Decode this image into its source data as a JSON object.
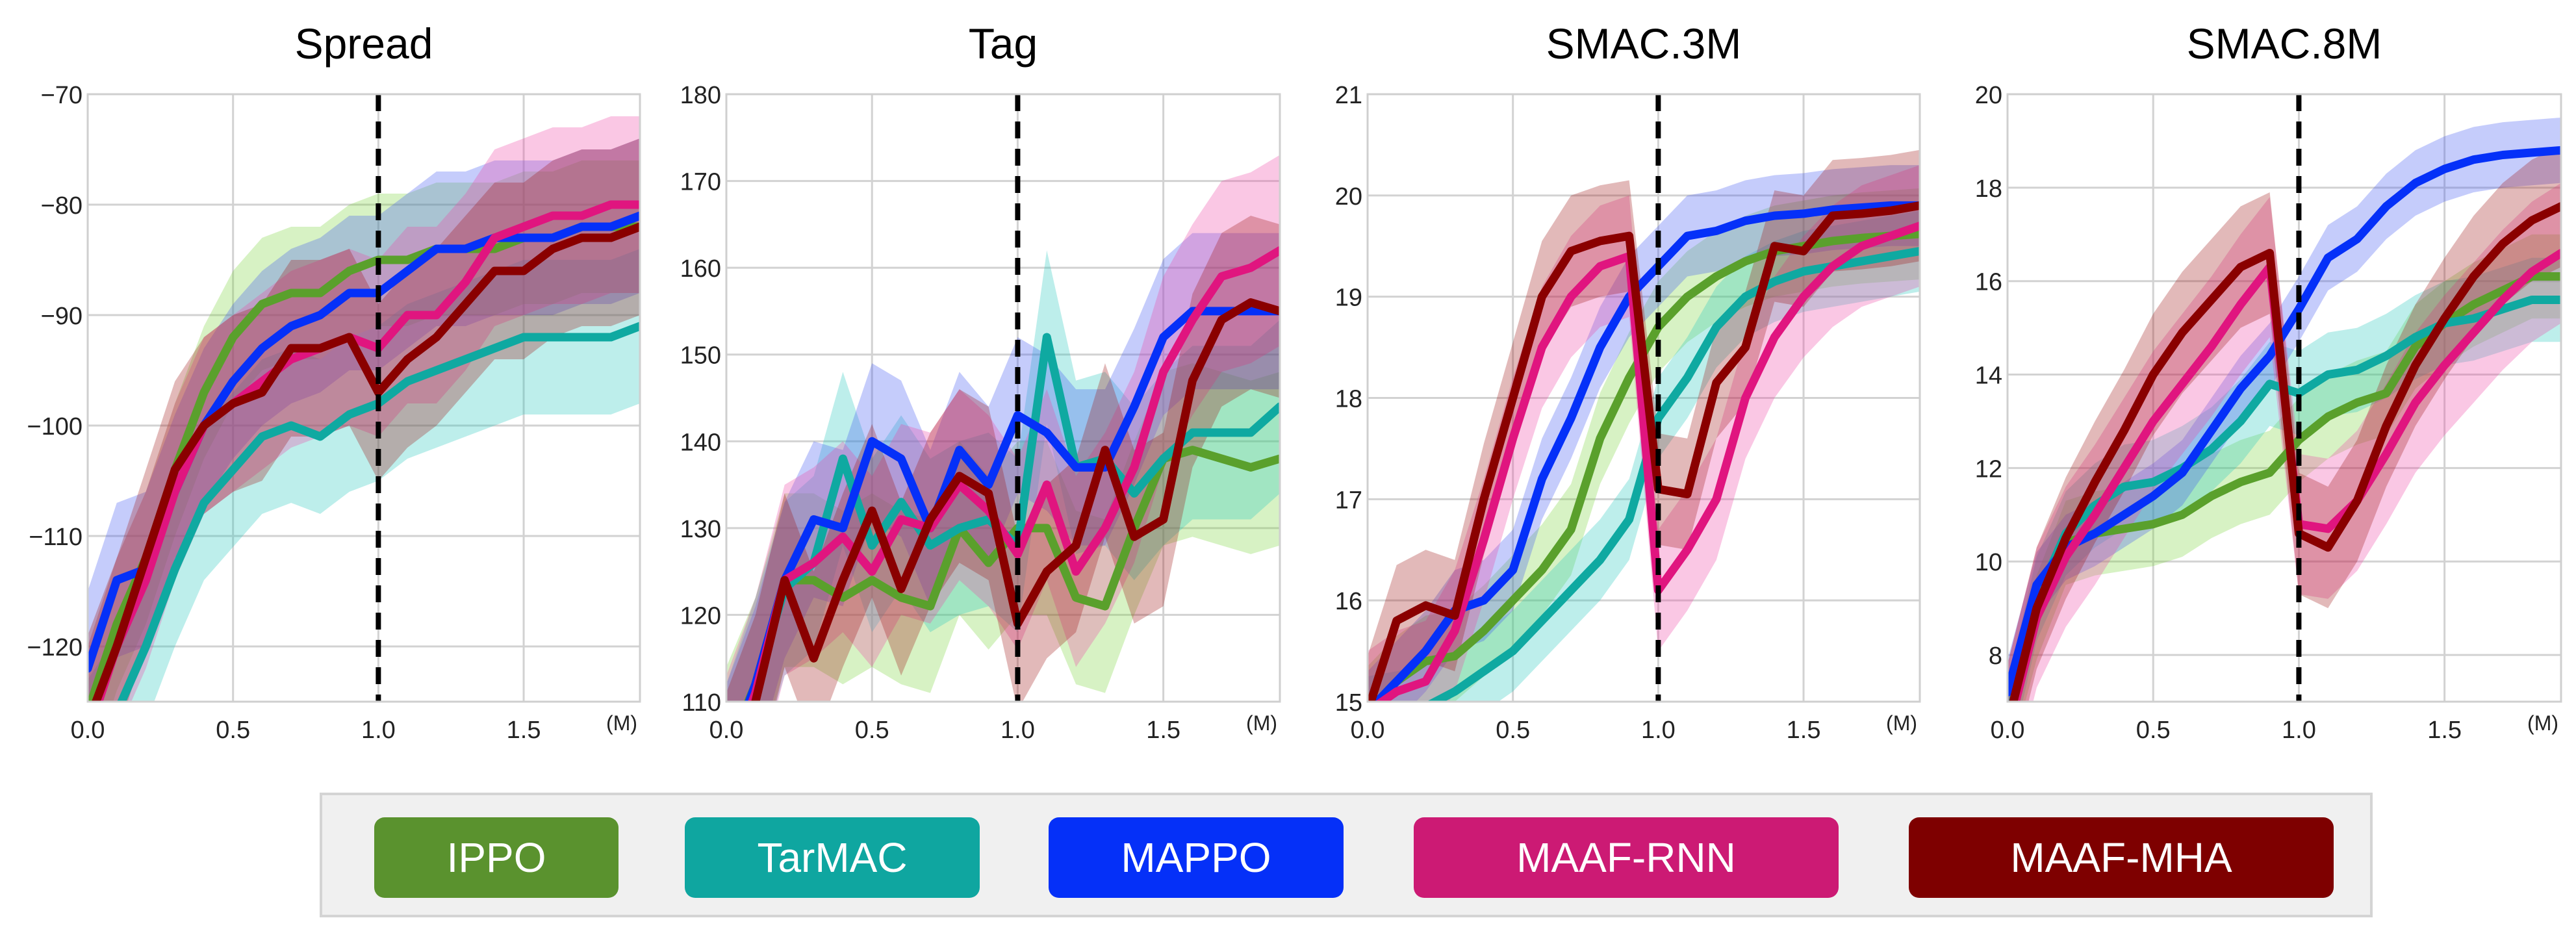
{
  "colors": {
    "IPPO": "#5aa02c",
    "TarMAC": "#0fa9a1",
    "MAPPO": "#0530f8",
    "MAAF-RNN": "#e0157f",
    "MAAF-MHA": "#8a0000"
  },
  "band_colors": {
    "IPPO": "#79d33a",
    "TarMAC": "#25c7bd",
    "MAPPO": "#4056f2",
    "MAAF-RNN": "#ee45a5",
    "MAAF-MHA": "#a01616"
  },
  "legend": {
    "items": [
      {
        "label": "IPPO",
        "key": "IPPO",
        "color": "#5a922e"
      },
      {
        "label": "TarMAC",
        "key": "TarMAC",
        "color": "#0fa6a0"
      },
      {
        "label": "MAPPO",
        "key": "MAPPO",
        "color": "#0530f8"
      },
      {
        "label": "MAAF-RNN",
        "key": "MAAF-RNN",
        "color": "#cc1a74"
      },
      {
        "label": "MAAF-MHA",
        "key": "MAAF-MHA",
        "color": "#7e0000"
      }
    ]
  },
  "chart_data": [
    {
      "type": "line",
      "title": "Spread",
      "x_unit": "(M)",
      "xlim": [
        0,
        1.9
      ],
      "ylim": [
        -125,
        -70
      ],
      "xticks": [
        0.0,
        0.5,
        1.0,
        1.5
      ],
      "yticks": [
        -120,
        -110,
        -100,
        -90,
        -80,
        -70
      ],
      "vline": 1.0,
      "grid": true,
      "series": [
        {
          "name": "IPPO",
          "band": 6,
          "x": [
            0.0,
            0.1,
            0.2,
            0.3,
            0.4,
            0.5,
            0.6,
            0.7,
            0.8,
            0.9,
            1.0,
            1.1,
            1.2,
            1.3,
            1.4,
            1.5,
            1.6,
            1.7,
            1.8,
            1.9
          ],
          "y": [
            -126,
            -118,
            -112,
            -104,
            -97,
            -92,
            -89,
            -88,
            -88,
            -86,
            -85,
            -85,
            -84,
            -84,
            -84,
            -83,
            -83,
            -82,
            -82,
            -82
          ]
        },
        {
          "name": "TarMAC",
          "band": 7,
          "x": [
            0.0,
            0.1,
            0.2,
            0.3,
            0.4,
            0.5,
            0.6,
            0.7,
            0.8,
            0.9,
            1.0,
            1.1,
            1.2,
            1.3,
            1.4,
            1.5,
            1.6,
            1.7,
            1.8,
            1.9
          ],
          "y": [
            -130,
            -126,
            -120,
            -113,
            -107,
            -104,
            -101,
            -100,
            -101,
            -99,
            -98,
            -96,
            -95,
            -94,
            -93,
            -92,
            -92,
            -92,
            -92,
            -91
          ]
        },
        {
          "name": "MAPPO",
          "band": 7,
          "x": [
            0.0,
            0.1,
            0.2,
            0.3,
            0.4,
            0.5,
            0.6,
            0.7,
            0.8,
            0.9,
            1.0,
            1.1,
            1.2,
            1.3,
            1.4,
            1.5,
            1.6,
            1.7,
            1.8,
            1.9
          ],
          "y": [
            -122,
            -114,
            -113,
            -106,
            -100,
            -96,
            -93,
            -91,
            -90,
            -88,
            -88,
            -86,
            -84,
            -84,
            -83,
            -83,
            -83,
            -82,
            -82,
            -81
          ]
        },
        {
          "name": "MAAF-RNN",
          "band": 8,
          "x": [
            0.0,
            0.1,
            0.2,
            0.3,
            0.4,
            0.5,
            0.6,
            0.7,
            0.8,
            0.9,
            1.0,
            1.1,
            1.2,
            1.3,
            1.4,
            1.5,
            1.6,
            1.7,
            1.8,
            1.9
          ],
          "y": [
            -128,
            -120,
            -114,
            -106,
            -100,
            -98,
            -96,
            -94,
            -93,
            -92,
            -93,
            -90,
            -90,
            -87,
            -83,
            -82,
            -81,
            -81,
            -80,
            -80
          ]
        },
        {
          "name": "MAAF-MHA",
          "band": 8,
          "x": [
            0.0,
            0.1,
            0.2,
            0.3,
            0.4,
            0.5,
            0.6,
            0.7,
            0.8,
            0.9,
            1.0,
            1.1,
            1.2,
            1.3,
            1.4,
            1.5,
            1.6,
            1.7,
            1.8,
            1.9
          ],
          "y": [
            -127,
            -120,
            -112,
            -104,
            -100,
            -98,
            -97,
            -93,
            -93,
            -92,
            -97,
            -94,
            -92,
            -89,
            -86,
            -86,
            -84,
            -83,
            -83,
            -82
          ]
        }
      ]
    },
    {
      "type": "line",
      "title": "Tag",
      "x_unit": "(M)",
      "xlim": [
        0,
        1.9
      ],
      "ylim": [
        110,
        180
      ],
      "xticks": [
        0.0,
        0.5,
        1.0,
        1.5
      ],
      "yticks": [
        110,
        120,
        130,
        140,
        150,
        160,
        170,
        180
      ],
      "vline": 1.0,
      "grid": true,
      "series": [
        {
          "name": "IPPO",
          "band": 10,
          "x": [
            0.0,
            0.1,
            0.2,
            0.3,
            0.4,
            0.5,
            0.6,
            0.7,
            0.8,
            0.9,
            1.0,
            1.1,
            1.2,
            1.3,
            1.4,
            1.5,
            1.6,
            1.7,
            1.8,
            1.9
          ],
          "y": [
            104,
            112,
            124,
            124,
            122,
            124,
            122,
            121,
            130,
            126,
            130,
            130,
            122,
            121,
            130,
            138,
            139,
            138,
            137,
            138
          ]
        },
        {
          "name": "TarMAC",
          "band": 10,
          "x": [
            0.0,
            0.1,
            0.2,
            0.3,
            0.4,
            0.5,
            0.6,
            0.7,
            0.8,
            0.9,
            1.0,
            1.1,
            1.2,
            1.3,
            1.4,
            1.5,
            1.6,
            1.7,
            1.8,
            1.9
          ],
          "y": [
            102,
            112,
            123,
            126,
            138,
            128,
            133,
            128,
            130,
            131,
            128,
            152,
            137,
            138,
            134,
            138,
            141,
            141,
            141,
            144
          ]
        },
        {
          "name": "MAPPO",
          "band": 9,
          "x": [
            0.0,
            0.1,
            0.2,
            0.3,
            0.4,
            0.5,
            0.6,
            0.7,
            0.8,
            0.9,
            1.0,
            1.1,
            1.2,
            1.3,
            1.4,
            1.5,
            1.6,
            1.7,
            1.8,
            1.9
          ],
          "y": [
            103,
            112,
            124,
            131,
            130,
            140,
            138,
            130,
            139,
            135,
            143,
            141,
            137,
            137,
            144,
            152,
            155,
            155,
            155,
            155
          ]
        },
        {
          "name": "MAAF-RNN",
          "band": 11,
          "x": [
            0.0,
            0.1,
            0.2,
            0.3,
            0.4,
            0.5,
            0.6,
            0.7,
            0.8,
            0.9,
            1.0,
            1.1,
            1.2,
            1.3,
            1.4,
            1.5,
            1.6,
            1.7,
            1.8,
            1.9
          ],
          "y": [
            102,
            111,
            124,
            126,
            129,
            125,
            131,
            130,
            135,
            132,
            127,
            135,
            125,
            130,
            137,
            148,
            154,
            159,
            160,
            162
          ]
        },
        {
          "name": "MAAF-MHA",
          "band": 10,
          "x": [
            0.0,
            0.1,
            0.2,
            0.3,
            0.4,
            0.5,
            0.6,
            0.7,
            0.8,
            0.9,
            1.0,
            1.1,
            1.2,
            1.3,
            1.4,
            1.5,
            1.6,
            1.7,
            1.8,
            1.9
          ],
          "y": [
            101,
            110,
            124,
            115,
            124,
            132,
            123,
            131,
            136,
            134,
            119,
            125,
            128,
            139,
            129,
            131,
            147,
            154,
            156,
            155
          ]
        }
      ]
    },
    {
      "type": "line",
      "title": "SMAC.3M",
      "x_unit": "(M)",
      "xlim": [
        0,
        1.9
      ],
      "ylim": [
        15,
        21
      ],
      "xticks": [
        0.0,
        0.5,
        1.0,
        1.5
      ],
      "yticks": [
        15,
        16,
        17,
        18,
        19,
        20,
        21
      ],
      "vline": 1.0,
      "grid": true,
      "series": [
        {
          "name": "IPPO",
          "band": 0.45,
          "x": [
            0.0,
            0.1,
            0.2,
            0.3,
            0.4,
            0.5,
            0.6,
            0.7,
            0.8,
            0.9,
            1.0,
            1.1,
            1.2,
            1.3,
            1.4,
            1.5,
            1.6,
            1.7,
            1.8,
            1.9
          ],
          "y": [
            14.9,
            15.2,
            15.4,
            15.45,
            15.7,
            16.0,
            16.3,
            16.7,
            17.6,
            18.2,
            18.7,
            19.0,
            19.2,
            19.35,
            19.45,
            19.5,
            19.55,
            19.58,
            19.6,
            19.62
          ]
        },
        {
          "name": "TarMAC",
          "band": 0.4,
          "x": [
            0.0,
            0.1,
            0.2,
            0.3,
            0.4,
            0.5,
            0.6,
            0.7,
            0.8,
            0.9,
            1.0,
            1.1,
            1.2,
            1.3,
            1.4,
            1.5,
            1.6,
            1.7,
            1.8,
            1.9
          ],
          "y": [
            14.85,
            14.9,
            14.95,
            15.1,
            15.3,
            15.5,
            15.8,
            16.1,
            16.4,
            16.8,
            17.8,
            18.2,
            18.7,
            19.0,
            19.15,
            19.25,
            19.3,
            19.35,
            19.4,
            19.45
          ]
        },
        {
          "name": "MAPPO",
          "band": 0.4,
          "x": [
            0.0,
            0.1,
            0.2,
            0.3,
            0.4,
            0.5,
            0.6,
            0.7,
            0.8,
            0.9,
            1.0,
            1.1,
            1.2,
            1.3,
            1.4,
            1.5,
            1.6,
            1.7,
            1.8,
            1.9
          ],
          "y": [
            14.9,
            15.2,
            15.5,
            15.9,
            16.0,
            16.3,
            17.2,
            17.8,
            18.5,
            19.0,
            19.3,
            19.6,
            19.65,
            19.75,
            19.8,
            19.82,
            19.86,
            19.88,
            19.9,
            19.9
          ]
        },
        {
          "name": "MAAF-RNN",
          "band": 0.6,
          "x": [
            0.0,
            0.1,
            0.2,
            0.3,
            0.4,
            0.5,
            0.6,
            0.7,
            0.8,
            0.9,
            1.0,
            1.1,
            1.2,
            1.3,
            1.4,
            1.5,
            1.6,
            1.7,
            1.8,
            1.9
          ],
          "y": [
            14.9,
            15.1,
            15.2,
            15.7,
            16.6,
            17.6,
            18.5,
            19.0,
            19.3,
            19.4,
            16.1,
            16.5,
            17.0,
            18.0,
            18.6,
            19.0,
            19.3,
            19.5,
            19.6,
            19.7
          ]
        },
        {
          "name": "MAAF-MHA",
          "band": 0.55,
          "x": [
            0.0,
            0.1,
            0.2,
            0.3,
            0.4,
            0.5,
            0.6,
            0.7,
            0.8,
            0.9,
            1.0,
            1.1,
            1.2,
            1.3,
            1.4,
            1.5,
            1.6,
            1.7,
            1.8,
            1.9
          ],
          "y": [
            14.9,
            15.8,
            15.95,
            15.85,
            17.0,
            18.0,
            19.0,
            19.45,
            19.55,
            19.6,
            17.1,
            17.05,
            18.15,
            18.5,
            19.5,
            19.45,
            19.8,
            19.82,
            19.85,
            19.9
          ]
        }
      ]
    },
    {
      "type": "line",
      "title": "SMAC.8M",
      "x_unit": "(M)",
      "xlim": [
        0,
        1.9
      ],
      "ylim": [
        7,
        20
      ],
      "xticks": [
        0.0,
        0.5,
        1.0,
        1.5
      ],
      "yticks": [
        8,
        10,
        12,
        14,
        16,
        18,
        20
      ],
      "vline": 1.0,
      "grid": true,
      "series": [
        {
          "name": "IPPO",
          "band": 0.9,
          "x": [
            0.0,
            0.1,
            0.2,
            0.3,
            0.4,
            0.5,
            0.6,
            0.7,
            0.8,
            0.9,
            1.0,
            1.1,
            1.2,
            1.3,
            1.4,
            1.5,
            1.6,
            1.7,
            1.8,
            1.9
          ],
          "y": [
            6.5,
            8.8,
            10.4,
            10.6,
            10.7,
            10.8,
            11.0,
            11.4,
            11.7,
            11.9,
            12.6,
            13.1,
            13.4,
            13.6,
            14.6,
            15.1,
            15.5,
            15.8,
            16.1,
            16.1
          ]
        },
        {
          "name": "TarMAC",
          "band": 0.9,
          "x": [
            0.0,
            0.1,
            0.2,
            0.3,
            0.4,
            0.5,
            0.6,
            0.7,
            0.8,
            0.9,
            1.0,
            1.1,
            1.2,
            1.3,
            1.4,
            1.5,
            1.6,
            1.7,
            1.8,
            1.9
          ],
          "y": [
            6.5,
            9.2,
            10.6,
            11.2,
            11.6,
            11.7,
            12.0,
            12.4,
            13.0,
            13.8,
            13.6,
            14.0,
            14.1,
            14.4,
            14.8,
            15.1,
            15.2,
            15.4,
            15.6,
            15.6
          ]
        },
        {
          "name": "MAPPO",
          "band": 0.7,
          "x": [
            0.0,
            0.1,
            0.2,
            0.3,
            0.4,
            0.5,
            0.6,
            0.7,
            0.8,
            0.9,
            1.0,
            1.1,
            1.2,
            1.3,
            1.4,
            1.5,
            1.6,
            1.7,
            1.8,
            1.9
          ],
          "y": [
            7.2,
            9.5,
            10.3,
            10.6,
            11.0,
            11.4,
            11.9,
            12.8,
            13.7,
            14.4,
            15.4,
            16.5,
            16.9,
            17.6,
            18.1,
            18.4,
            18.6,
            18.7,
            18.75,
            18.8
          ]
        },
        {
          "name": "MAAF-RNN",
          "band": 1.5,
          "x": [
            0.0,
            0.1,
            0.2,
            0.3,
            0.4,
            0.5,
            0.6,
            0.7,
            0.8,
            0.9,
            1.0,
            1.1,
            1.2,
            1.3,
            1.4,
            1.5,
            1.6,
            1.7,
            1.8,
            1.9
          ],
          "y": [
            6.3,
            8.8,
            10.1,
            11.0,
            12.0,
            13.0,
            13.8,
            14.6,
            15.5,
            16.3,
            10.8,
            10.7,
            11.3,
            12.3,
            13.4,
            14.2,
            14.9,
            15.6,
            16.2,
            16.6
          ]
        },
        {
          "name": "MAAF-MHA",
          "band": 1.3,
          "x": [
            0.0,
            0.1,
            0.2,
            0.3,
            0.4,
            0.5,
            0.6,
            0.7,
            0.8,
            0.9,
            1.0,
            1.1,
            1.2,
            1.3,
            1.4,
            1.5,
            1.6,
            1.7,
            1.8,
            1.9
          ],
          "y": [
            6.5,
            9.0,
            10.5,
            11.7,
            12.8,
            14.0,
            14.9,
            15.6,
            16.3,
            16.6,
            10.6,
            10.3,
            11.3,
            12.9,
            14.2,
            15.2,
            16.1,
            16.8,
            17.3,
            17.6
          ]
        }
      ]
    }
  ]
}
